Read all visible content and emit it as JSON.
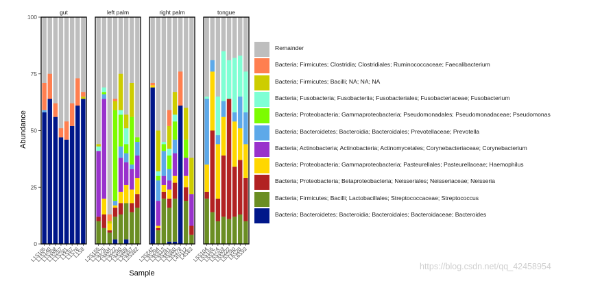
{
  "chart_data": {
    "type": "stacked-bar",
    "xlabel": "Sample",
    "ylabel": "Abundance",
    "ylim": [
      0,
      100
    ],
    "yticks": [
      0,
      25,
      50,
      75,
      100
    ],
    "legend_position": "right",
    "taxa": [
      {
        "name": "Bacteria; Bacteroidetes; Bacteroidia; Bacteroidales; Bacteroidaceae; Bacteroides",
        "color": "#00178A"
      },
      {
        "name": "Bacteria; Firmicutes; Bacilli; Lactobacillales; Streptococcaceae; Streptococcus",
        "color": "#6B8E23"
      },
      {
        "name": "Bacteria; Proteobacteria; Betaproteobacteria; Neisseriales; Neisseriaceae; Neisseria",
        "color": "#B22222"
      },
      {
        "name": "Bacteria; Proteobacteria; Gammaproteobacteria; Pasteurellales; Pasteurellaceae; Haemophilus",
        "color": "#FFD700"
      },
      {
        "name": "Bacteria; Actinobacteria; Actinobacteria; Actinomycetales; Corynebacteriaceae; Corynebacterium",
        "color": "#9932CC"
      },
      {
        "name": "Bacteria; Bacteroidetes; Bacteroidia; Bacteroidales; Prevotellaceae; Prevotella",
        "color": "#5DA9E9"
      },
      {
        "name": "Bacteria; Proteobacteria; Gammaproteobacteria; Pseudomonadales; Pseudomonadaceae; Pseudomonas",
        "color": "#7CFC00"
      },
      {
        "name": "Bacteria; Fusobacteria; Fusobacteriia; Fusobacteriales; Fusobacteriaceae; Fusobacterium",
        "color": "#7FFFD4"
      },
      {
        "name": "Bacteria; Firmicutes; Bacilli; NA; NA; NA",
        "color": "#CDCD00"
      },
      {
        "name": "Bacteria; Firmicutes; Clostridia; Clostridiales; Ruminococcaceae; Faecalibacterium",
        "color": "#FF7F50"
      },
      {
        "name": "Remainder",
        "color": "#BEBEBE"
      }
    ],
    "legend_order": [
      10,
      9,
      8,
      7,
      6,
      5,
      4,
      3,
      2,
      1,
      0
    ],
    "facets": [
      {
        "name": "gut",
        "samples": [
          {
            "label": "L1S105",
            "values": [
              58,
              0,
              0,
              0,
              0,
              1,
              0,
              0,
              0,
              12
            ]
          },
          {
            "label": "L1S140",
            "values": [
              64,
              0,
              0,
              0,
              0,
              0,
              0,
              0,
              0,
              11
            ]
          },
          {
            "label": "L1S208",
            "values": [
              56,
              0,
              0,
              0,
              0,
              0,
              0,
              0,
              0,
              6
            ]
          },
          {
            "label": "L1S257",
            "values": [
              47,
              0,
              0,
              0,
              0,
              0,
              0,
              0,
              0,
              4
            ]
          },
          {
            "label": "L1S281",
            "values": [
              46,
              0,
              0,
              0,
              0,
              0,
              0,
              0,
              0,
              8
            ]
          },
          {
            "label": "L1S57",
            "values": [
              52,
              0,
              0,
              0,
              0,
              0,
              0,
              0,
              0,
              10
            ]
          },
          {
            "label": "L1S76",
            "values": [
              61,
              0,
              0,
              0,
              0,
              0,
              0,
              0,
              0,
              12
            ]
          },
          {
            "label": "L1S8",
            "values": [
              64,
              0,
              0,
              0,
              0,
              0,
              0,
              0,
              1,
              2
            ]
          }
        ]
      },
      {
        "name": "left palm",
        "samples": [
          {
            "label": "L2S155",
            "values": [
              0,
              10,
              2,
              0,
              29,
              0,
              0,
              2,
              1,
              0
            ]
          },
          {
            "label": "L2S175",
            "values": [
              0,
              7,
              6,
              7,
              44,
              2,
              1,
              2,
              0,
              0
            ]
          },
          {
            "label": "L2S204",
            "values": [
              0,
              5,
              1,
              3,
              0,
              0,
              0,
              0,
              1,
              3
            ]
          },
          {
            "label": "L2S222",
            "values": [
              2,
              10,
              4,
              1,
              0,
              2,
              40,
              0,
              4,
              1
            ]
          },
          {
            "label": "L2S240",
            "values": [
              0,
              13,
              5,
              5,
              15,
              5,
              14,
              2,
              16,
              0
            ]
          },
          {
            "label": "L2S309",
            "values": [
              2,
              16,
              0,
              8,
              10,
              4,
              4,
              7,
              6,
              0
            ]
          },
          {
            "label": "L2S357",
            "values": [
              0,
              14,
              4,
              6,
              9,
              2,
              21,
              0,
              15,
              0
            ]
          },
          {
            "label": "L2S382",
            "values": [
              0,
              16,
              6,
              7,
              10,
              6,
              2,
              0,
              0,
              0
            ]
          }
        ]
      },
      {
        "name": "right palm",
        "samples": [
          {
            "label": "L3S242",
            "values": [
              69,
              0,
              0,
              1,
              0,
              0,
              0,
              0,
              0,
              1
            ]
          },
          {
            "label": "L3S294",
            "values": [
              0,
              6,
              1,
              1,
              11,
              9,
              2,
              2,
              18,
              0
            ]
          },
          {
            "label": "L3S313",
            "values": [
              0,
              20,
              3,
              3,
              4,
              11,
              3,
              1,
              0,
              0
            ]
          },
          {
            "label": "L3S341",
            "values": [
              1,
              15,
              4,
              4,
              4,
              5,
              6,
              3,
              10,
              7
            ]
          },
          {
            "label": "L3S360",
            "values": [
              1,
              19,
              7,
              3,
              10,
              6,
              8,
              3,
              10,
              0
            ]
          },
          {
            "label": "L3S378",
            "values": [
              61,
              0,
              0,
              0,
              0,
              0,
              0,
              0,
              0,
              15
            ]
          },
          {
            "label": "L4S112",
            "values": [
              0,
              19,
              6,
              5,
              8,
              0,
              8,
              0,
              14,
              0
            ]
          },
          {
            "label": "L4S63",
            "values": [
              0,
              4,
              4,
              0,
              14,
              0,
              0,
              0,
              16,
              0
            ]
          }
        ]
      },
      {
        "name": "tongue",
        "samples": [
          {
            "label": "L5S104",
            "values": [
              0,
              20,
              3,
              12,
              0,
              29,
              0,
              1,
              0,
              0
            ]
          },
          {
            "label": "L5S155",
            "values": [
              0,
              14,
              36,
              26,
              0,
              5,
              0,
              0,
              0,
              0
            ]
          },
          {
            "label": "L5S174",
            "values": [
              0,
              10,
              10,
              24,
              0,
              4,
              0,
              17,
              0,
              0
            ]
          },
          {
            "label": "L5S203",
            "values": [
              0,
              12,
              27,
              17,
              0,
              7,
              0,
              22,
              0,
              0
            ]
          },
          {
            "label": "L5S222",
            "values": [
              0,
              11,
              53,
              0,
              0,
              0,
              0,
              17,
              0,
              0
            ]
          },
          {
            "label": "L5S240",
            "values": [
              0,
              12,
              22,
              20,
              0,
              4,
              0,
              24,
              0,
              0
            ]
          },
          {
            "label": "L6S20",
            "values": [
              0,
              13,
              24,
              14,
              0,
              14,
              0,
              18,
              0,
              0
            ]
          },
          {
            "label": "L6S93",
            "values": [
              0,
              10,
              19,
              15,
              0,
              14,
              0,
              18,
              0,
              0
            ]
          }
        ]
      }
    ]
  },
  "watermark": "https://blog.csdn.net/qq_42458954"
}
